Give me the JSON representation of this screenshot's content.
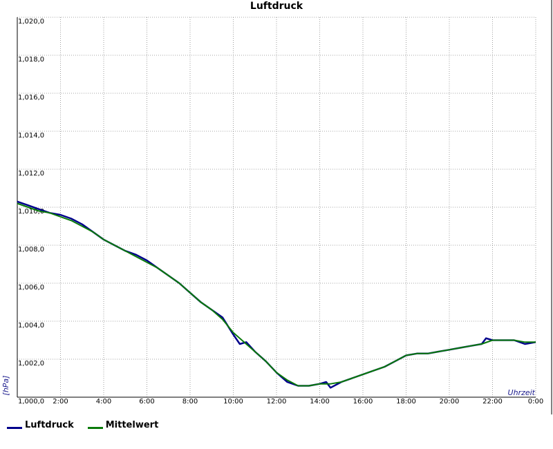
{
  "chart_data": {
    "type": "line",
    "title": "Luftdruck",
    "xlabel": "Uhrzeit",
    "ylabel": "[hPa]",
    "ylim": [
      1000,
      1020
    ],
    "xlim": [
      0,
      24
    ],
    "grid": true,
    "legend_position": "bottom-left",
    "x_ticks": [
      "2:00",
      "4:00",
      "6:00",
      "8:00",
      "10:00",
      "12:00",
      "14:00",
      "16:00",
      "18:00",
      "20:00",
      "22:00",
      "0:00"
    ],
    "y_ticks": [
      "1,000,0",
      "1,002,0",
      "1,004,0",
      "1,006,0",
      "1,008,0",
      "1,010,0",
      "1,012,0",
      "1,014,0",
      "1,016,0",
      "1,018,0",
      "1,020,0"
    ],
    "series": [
      {
        "name": "Luftdruck",
        "color": "#00008b",
        "points": [
          [
            0.0,
            1010.3
          ],
          [
            0.5,
            1010.1
          ],
          [
            1.0,
            1009.9
          ],
          [
            1.5,
            1009.7
          ],
          [
            2.0,
            1009.6
          ],
          [
            2.5,
            1009.4
          ],
          [
            3.0,
            1009.1
          ],
          [
            3.5,
            1008.7
          ],
          [
            4.0,
            1008.3
          ],
          [
            4.5,
            1008.0
          ],
          [
            5.0,
            1007.7
          ],
          [
            5.5,
            1007.5
          ],
          [
            6.0,
            1007.2
          ],
          [
            6.5,
            1006.8
          ],
          [
            7.0,
            1006.4
          ],
          [
            7.5,
            1006.0
          ],
          [
            8.0,
            1005.5
          ],
          [
            8.5,
            1005.0
          ],
          [
            9.0,
            1004.6
          ],
          [
            9.5,
            1004.2
          ],
          [
            10.0,
            1003.3
          ],
          [
            10.3,
            1002.8
          ],
          [
            10.6,
            1002.9
          ],
          [
            11.0,
            1002.4
          ],
          [
            11.5,
            1001.9
          ],
          [
            12.0,
            1001.3
          ],
          [
            12.5,
            1000.8
          ],
          [
            13.0,
            1000.6
          ],
          [
            13.5,
            1000.6
          ],
          [
            14.0,
            1000.7
          ],
          [
            14.3,
            1000.8
          ],
          [
            14.5,
            1000.5
          ],
          [
            15.0,
            1000.8
          ],
          [
            15.5,
            1001.0
          ],
          [
            16.0,
            1001.2
          ],
          [
            16.5,
            1001.4
          ],
          [
            17.0,
            1001.6
          ],
          [
            17.5,
            1001.9
          ],
          [
            18.0,
            1002.2
          ],
          [
            18.5,
            1002.3
          ],
          [
            19.0,
            1002.3
          ],
          [
            19.5,
            1002.4
          ],
          [
            20.0,
            1002.5
          ],
          [
            20.5,
            1002.6
          ],
          [
            21.0,
            1002.7
          ],
          [
            21.5,
            1002.8
          ],
          [
            21.7,
            1003.1
          ],
          [
            22.0,
            1003.0
          ],
          [
            22.5,
            1003.0
          ],
          [
            23.0,
            1003.0
          ],
          [
            23.5,
            1002.8
          ],
          [
            24.0,
            1002.9
          ]
        ]
      },
      {
        "name": "Mittelwert",
        "color": "#0a7a0a",
        "points": [
          [
            0.0,
            1010.2
          ],
          [
            0.5,
            1010.0
          ],
          [
            1.0,
            1009.8
          ],
          [
            1.5,
            1009.7
          ],
          [
            2.0,
            1009.5
          ],
          [
            2.5,
            1009.3
          ],
          [
            3.0,
            1009.0
          ],
          [
            3.5,
            1008.7
          ],
          [
            4.0,
            1008.3
          ],
          [
            4.5,
            1008.0
          ],
          [
            5.0,
            1007.7
          ],
          [
            5.5,
            1007.4
          ],
          [
            6.0,
            1007.1
          ],
          [
            6.5,
            1006.8
          ],
          [
            7.0,
            1006.4
          ],
          [
            7.5,
            1006.0
          ],
          [
            8.0,
            1005.5
          ],
          [
            8.5,
            1005.0
          ],
          [
            9.0,
            1004.6
          ],
          [
            9.5,
            1004.1
          ],
          [
            10.0,
            1003.4
          ],
          [
            10.5,
            1002.9
          ],
          [
            11.0,
            1002.4
          ],
          [
            11.5,
            1001.9
          ],
          [
            12.0,
            1001.3
          ],
          [
            12.5,
            1000.9
          ],
          [
            13.0,
            1000.6
          ],
          [
            13.5,
            1000.6
          ],
          [
            14.0,
            1000.7
          ],
          [
            14.5,
            1000.7
          ],
          [
            15.0,
            1000.8
          ],
          [
            15.5,
            1001.0
          ],
          [
            16.0,
            1001.2
          ],
          [
            16.5,
            1001.4
          ],
          [
            17.0,
            1001.6
          ],
          [
            17.5,
            1001.9
          ],
          [
            18.0,
            1002.2
          ],
          [
            18.5,
            1002.3
          ],
          [
            19.0,
            1002.3
          ],
          [
            19.5,
            1002.4
          ],
          [
            20.0,
            1002.5
          ],
          [
            20.5,
            1002.6
          ],
          [
            21.0,
            1002.7
          ],
          [
            21.5,
            1002.8
          ],
          [
            22.0,
            1003.0
          ],
          [
            22.5,
            1003.0
          ],
          [
            23.0,
            1003.0
          ],
          [
            23.5,
            1002.9
          ],
          [
            24.0,
            1002.9
          ]
        ]
      }
    ]
  }
}
